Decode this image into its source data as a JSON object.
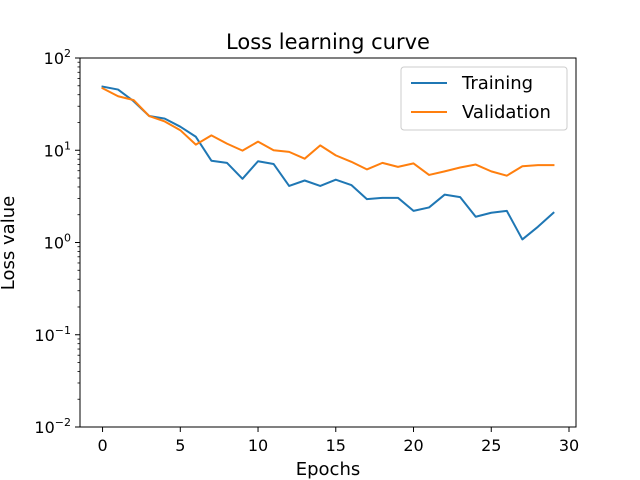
{
  "chart_data": {
    "type": "line",
    "title": "Loss learning curve",
    "xlabel": "Epochs",
    "ylabel": "Loss value",
    "yscale": "log",
    "xlim": [
      -1.45,
      30.45
    ],
    "ylim": [
      0.01,
      100
    ],
    "x_ticks": [
      0,
      5,
      10,
      15,
      20,
      25,
      30
    ],
    "y_ticks": [
      {
        "value": 0.01,
        "base": "10",
        "exp": "−2"
      },
      {
        "value": 0.1,
        "base": "10",
        "exp": "−1"
      },
      {
        "value": 1,
        "base": "10",
        "exp": "0"
      },
      {
        "value": 10,
        "base": "10",
        "exp": "1"
      },
      {
        "value": 100,
        "base": "10",
        "exp": "2"
      }
    ],
    "grid": false,
    "legend_position": "upper-right",
    "x": [
      0,
      1,
      2,
      3,
      4,
      5,
      6,
      7,
      8,
      9,
      10,
      11,
      12,
      13,
      14,
      15,
      16,
      17,
      18,
      19,
      20,
      21,
      22,
      23,
      24,
      25,
      26,
      27,
      28,
      29
    ],
    "series": [
      {
        "name": "Training",
        "color": "#1f77b4",
        "values": [
          49,
          45.5,
          34,
          23.5,
          22,
          18,
          14,
          7.7,
          7.3,
          4.9,
          7.6,
          7.1,
          4.1,
          4.7,
          4.1,
          4.8,
          4.2,
          2.95,
          3.05,
          3.05,
          2.2,
          2.4,
          3.3,
          3.1,
          1.9,
          2.1,
          2.2,
          1.08,
          1.48,
          2.1
        ]
      },
      {
        "name": "Validation",
        "color": "#ff7f0e",
        "values": [
          47,
          38.5,
          35,
          23.5,
          20.5,
          16.5,
          11.5,
          14.5,
          11.8,
          9.9,
          12.4,
          10,
          9.6,
          8.1,
          11.3,
          8.8,
          7.5,
          6.2,
          7.3,
          6.6,
          7.2,
          5.4,
          5.9,
          6.5,
          7,
          5.9,
          5.3,
          6.7,
          6.9,
          6.9
        ]
      }
    ]
  }
}
